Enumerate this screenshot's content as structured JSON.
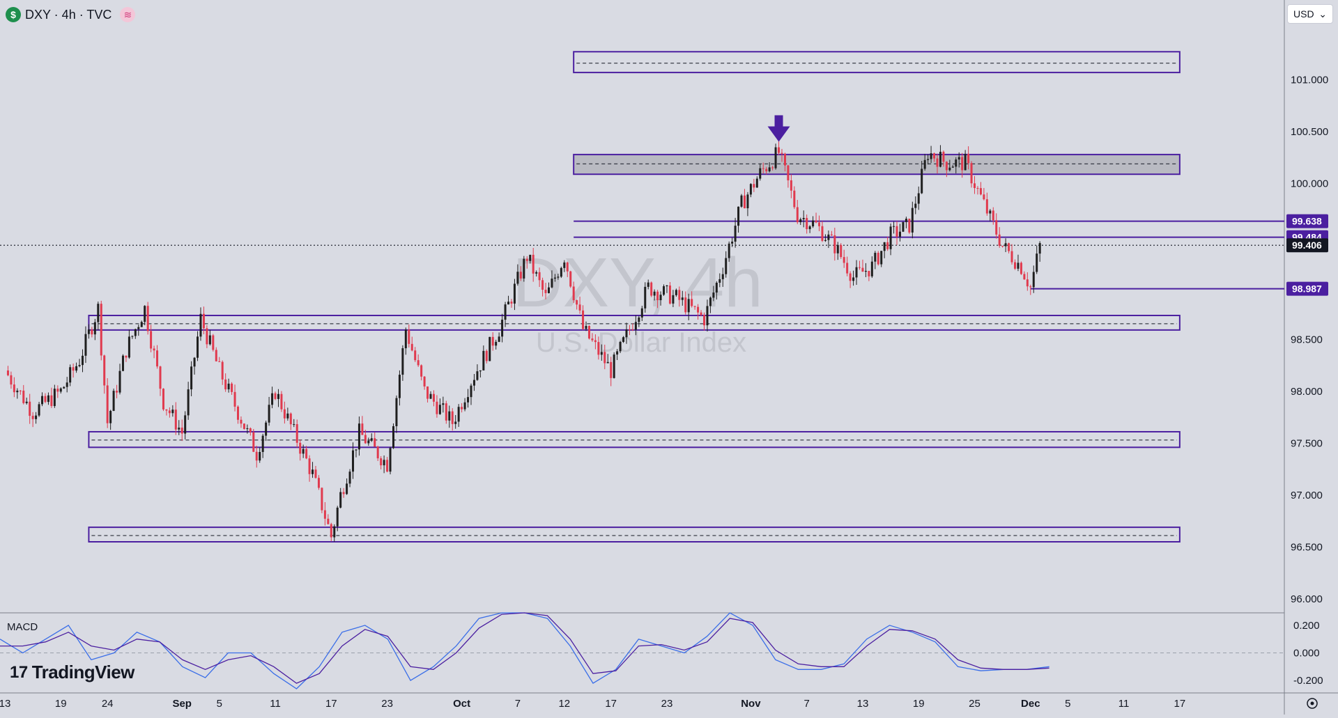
{
  "header": {
    "symbol_icon": "dollar-icon",
    "symbol_glyph": "$",
    "title": "DXY · 4h · TVC",
    "indicator_icon": "wave-icon",
    "indicator_glyph": "≋"
  },
  "currency_select": {
    "value": "USD",
    "icon": "chevron-down-icon",
    "glyph": "⌄"
  },
  "watermark": {
    "symbol": "DXY, 4h",
    "name": "U.S. Dollar Index"
  },
  "logo": {
    "icon": "tradingview-logo-icon",
    "mark": "17",
    "text": "TradingView"
  },
  "macd_label": "MACD",
  "settings_icon": "gear-icon",
  "colors": {
    "background": "#d9dbe3",
    "up_candle": "#1f1f1f",
    "down_candle": "#e03a4e",
    "zone_border": "#4b1fa0",
    "zone_fill": "#b9bac2",
    "price_tag": "#4b1fa0",
    "current_tag": "#131722",
    "macd_line": "#3a6ee8",
    "signal_line": "#4b1fa0"
  },
  "chart_data": {
    "type": "candlestick",
    "interval": "4h",
    "ylim": [
      96.0,
      101.5
    ],
    "y_ticks": [
      "96.000",
      "96.500",
      "97.000",
      "97.500",
      "98.000",
      "98.500",
      "100.000",
      "100.500",
      "101.000"
    ],
    "x_ticks": [
      "13",
      "19",
      "24",
      "Sep",
      "5",
      "11",
      "17",
      "23",
      "Oct",
      "7",
      "12",
      "17",
      "23",
      "Nov",
      "7",
      "13",
      "19",
      "25",
      "Dec",
      "5",
      "11",
      "17"
    ],
    "price_path": [
      [
        "Aug 13",
        98.2
      ],
      [
        "Aug 16",
        97.8
      ],
      [
        "Aug 19",
        98.0
      ],
      [
        "Aug 21",
        98.3
      ],
      [
        "Aug 23",
        98.8
      ],
      [
        "Aug 24",
        97.7
      ],
      [
        "Aug 26",
        98.4
      ],
      [
        "Aug 28",
        98.8
      ],
      [
        "Aug 30",
        97.9
      ],
      [
        "Sep 1",
        97.6
      ],
      [
        "Sep 3",
        98.7
      ],
      [
        "Sep 5",
        98.2
      ],
      [
        "Sep 7",
        97.8
      ],
      [
        "Sep 9",
        97.4
      ],
      [
        "Sep 11",
        98.0
      ],
      [
        "Sep 13",
        97.6
      ],
      [
        "Sep 15",
        97.2
      ],
      [
        "Sep 17",
        96.6
      ],
      [
        "Sep 18",
        97.0
      ],
      [
        "Sep 20",
        97.6
      ],
      [
        "Sep 23",
        97.3
      ],
      [
        "Sep 25",
        98.6
      ],
      [
        "Sep 27",
        98.0
      ],
      [
        "Sep 30",
        97.7
      ],
      [
        "Oct 2",
        98.1
      ],
      [
        "Oct 5",
        98.6
      ],
      [
        "Oct 8",
        99.3
      ],
      [
        "Oct 10",
        98.9
      ],
      [
        "Oct 12",
        99.3
      ],
      [
        "Oct 14",
        98.6
      ],
      [
        "Oct 17",
        98.2
      ],
      [
        "Oct 19",
        98.6
      ],
      [
        "Oct 21",
        99.0
      ],
      [
        "Oct 24",
        98.9
      ],
      [
        "Oct 27",
        98.7
      ],
      [
        "Oct 29",
        99.2
      ],
      [
        "Oct 31",
        99.8
      ],
      [
        "Nov 2",
        100.1
      ],
      [
        "Nov 4",
        100.3
      ],
      [
        "Nov 6",
        99.7
      ],
      [
        "Nov 8",
        99.6
      ],
      [
        "Nov 10",
        99.4
      ],
      [
        "Nov 12",
        99.1
      ],
      [
        "Nov 14",
        99.2
      ],
      [
        "Nov 16",
        99.5
      ],
      [
        "Nov 18",
        99.6
      ],
      [
        "Nov 20",
        100.3
      ],
      [
        "Nov 22",
        100.2
      ],
      [
        "Nov 24",
        100.2
      ],
      [
        "Nov 26",
        99.8
      ],
      [
        "Nov 28",
        99.4
      ],
      [
        "Nov 30",
        99.2
      ],
      [
        "Dec 1",
        99.0
      ],
      [
        "Dec 2",
        99.4
      ]
    ],
    "zones": [
      {
        "from": "Oct 13",
        "to": "Dec 17",
        "low": 101.07,
        "high": 101.27,
        "mid": 101.16,
        "filled": false
      },
      {
        "from": "Oct 13",
        "to": "Dec 17",
        "low": 100.09,
        "high": 100.28,
        "mid": 100.19,
        "filled": true
      },
      {
        "from": "Aug 22",
        "to": "Dec 17",
        "low": 98.59,
        "high": 98.73,
        "mid": 98.65,
        "filled": false
      },
      {
        "from": "Aug 22",
        "to": "Dec 17",
        "low": 97.46,
        "high": 97.61,
        "mid": 97.53,
        "filled": false
      },
      {
        "from": "Aug 22",
        "to": "Dec 17",
        "low": 96.55,
        "high": 96.69,
        "mid": 96.61,
        "filled": false
      }
    ],
    "levels": [
      {
        "value": 99.638,
        "label": "99.638",
        "from": "Oct 13"
      },
      {
        "value": 99.484,
        "label": "99.484",
        "from": "Oct 13"
      },
      {
        "value": 98.987,
        "label": "98.987",
        "from": "Dec 1"
      }
    ],
    "current_price": {
      "value": 99.406,
      "label": "99.406"
    },
    "annotation": {
      "type": "arrow-down",
      "at": "Nov 4",
      "value": 100.35
    },
    "macd": {
      "ylim": [
        -0.25,
        0.25
      ],
      "ticks": [
        "0.200",
        "0.000",
        "-0.200"
      ],
      "macd_values": [
        0.1,
        0.0,
        0.1,
        0.2,
        -0.05,
        0.0,
        0.15,
        0.08,
        -0.1,
        -0.18,
        0.0,
        0.0,
        -0.15,
        -0.26,
        -0.1,
        0.15,
        0.2,
        0.1,
        -0.2,
        -0.1,
        0.05,
        0.25,
        0.3,
        0.3,
        0.25,
        0.05,
        -0.22,
        -0.12,
        0.1,
        0.05,
        0.0,
        0.12,
        0.3,
        0.2,
        -0.05,
        -0.12,
        -0.12,
        -0.08,
        0.1,
        0.2,
        0.15,
        0.08,
        -0.1,
        -0.13,
        -0.12,
        -0.12,
        -0.1
      ],
      "signal_values": [
        0.05,
        0.05,
        0.08,
        0.15,
        0.05,
        0.02,
        0.1,
        0.08,
        -0.05,
        -0.12,
        -0.05,
        -0.02,
        -0.1,
        -0.22,
        -0.15,
        0.05,
        0.17,
        0.12,
        -0.1,
        -0.12,
        0.0,
        0.18,
        0.28,
        0.3,
        0.27,
        0.1,
        -0.15,
        -0.13,
        0.05,
        0.06,
        0.02,
        0.08,
        0.25,
        0.22,
        0.02,
        -0.08,
        -0.1,
        -0.1,
        0.05,
        0.17,
        0.16,
        0.1,
        -0.05,
        -0.11,
        -0.12,
        -0.12,
        -0.11
      ]
    }
  }
}
